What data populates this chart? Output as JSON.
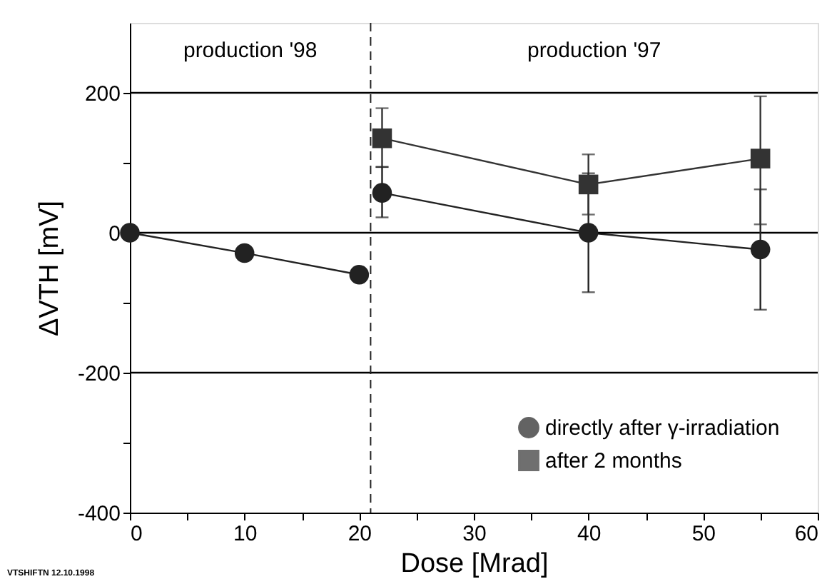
{
  "chart_data": {
    "type": "line",
    "xlabel": "Dose [Mrad]",
    "ylabel": "ΔVTH [mV]",
    "xlim": [
      0,
      60
    ],
    "ylim": [
      -400,
      300
    ],
    "xticks": [
      0,
      {
        "value": 5,
        "label": null
      },
      10,
      {
        "value": 15,
        "label": null
      },
      20,
      {
        "value": 25,
        "label": null
      },
      30,
      {
        "value": 35,
        "label": null
      },
      40,
      {
        "value": 45,
        "label": null
      },
      50,
      {
        "value": 55,
        "label": null
      },
      60
    ],
    "yticks": [
      -400,
      {
        "value": -300,
        "label": null
      },
      -200,
      {
        "value": -100,
        "label": null
      },
      0,
      {
        "value": 100,
        "label": null
      },
      200
    ],
    "grid": "y",
    "legend": "bottom right",
    "series": [
      {
        "name": "directly after γ-irradiation",
        "color": "#222222",
        "marker": "circle",
        "x": [
          0,
          10,
          20,
          21,
          22,
          40,
          55
        ],
        "values": [
          0,
          -29,
          -60,
          null,
          57,
          0,
          -24
        ],
        "errors": [
          null,
          null,
          null,
          null,
          [
            22,
            94
          ],
          [
            -85,
            85
          ],
          [
            -110,
            62
          ]
        ]
      },
      {
        "name": "after 2 months",
        "color": "#333333",
        "marker": "square",
        "x": [
          22,
          40,
          55
        ],
        "values": [
          135,
          69,
          106
        ],
        "errors": [
          [
            94,
            178
          ],
          [
            26,
            112
          ],
          [
            12,
            195
          ]
        ]
      }
    ],
    "ref_lines": [
      {
        "axis": "x",
        "value": 21,
        "line_style": "dashed",
        "color": "#222222"
      }
    ],
    "annotations": [
      "production '98",
      "production '97",
      "VTSHIFTN 12.10.1998"
    ]
  }
}
